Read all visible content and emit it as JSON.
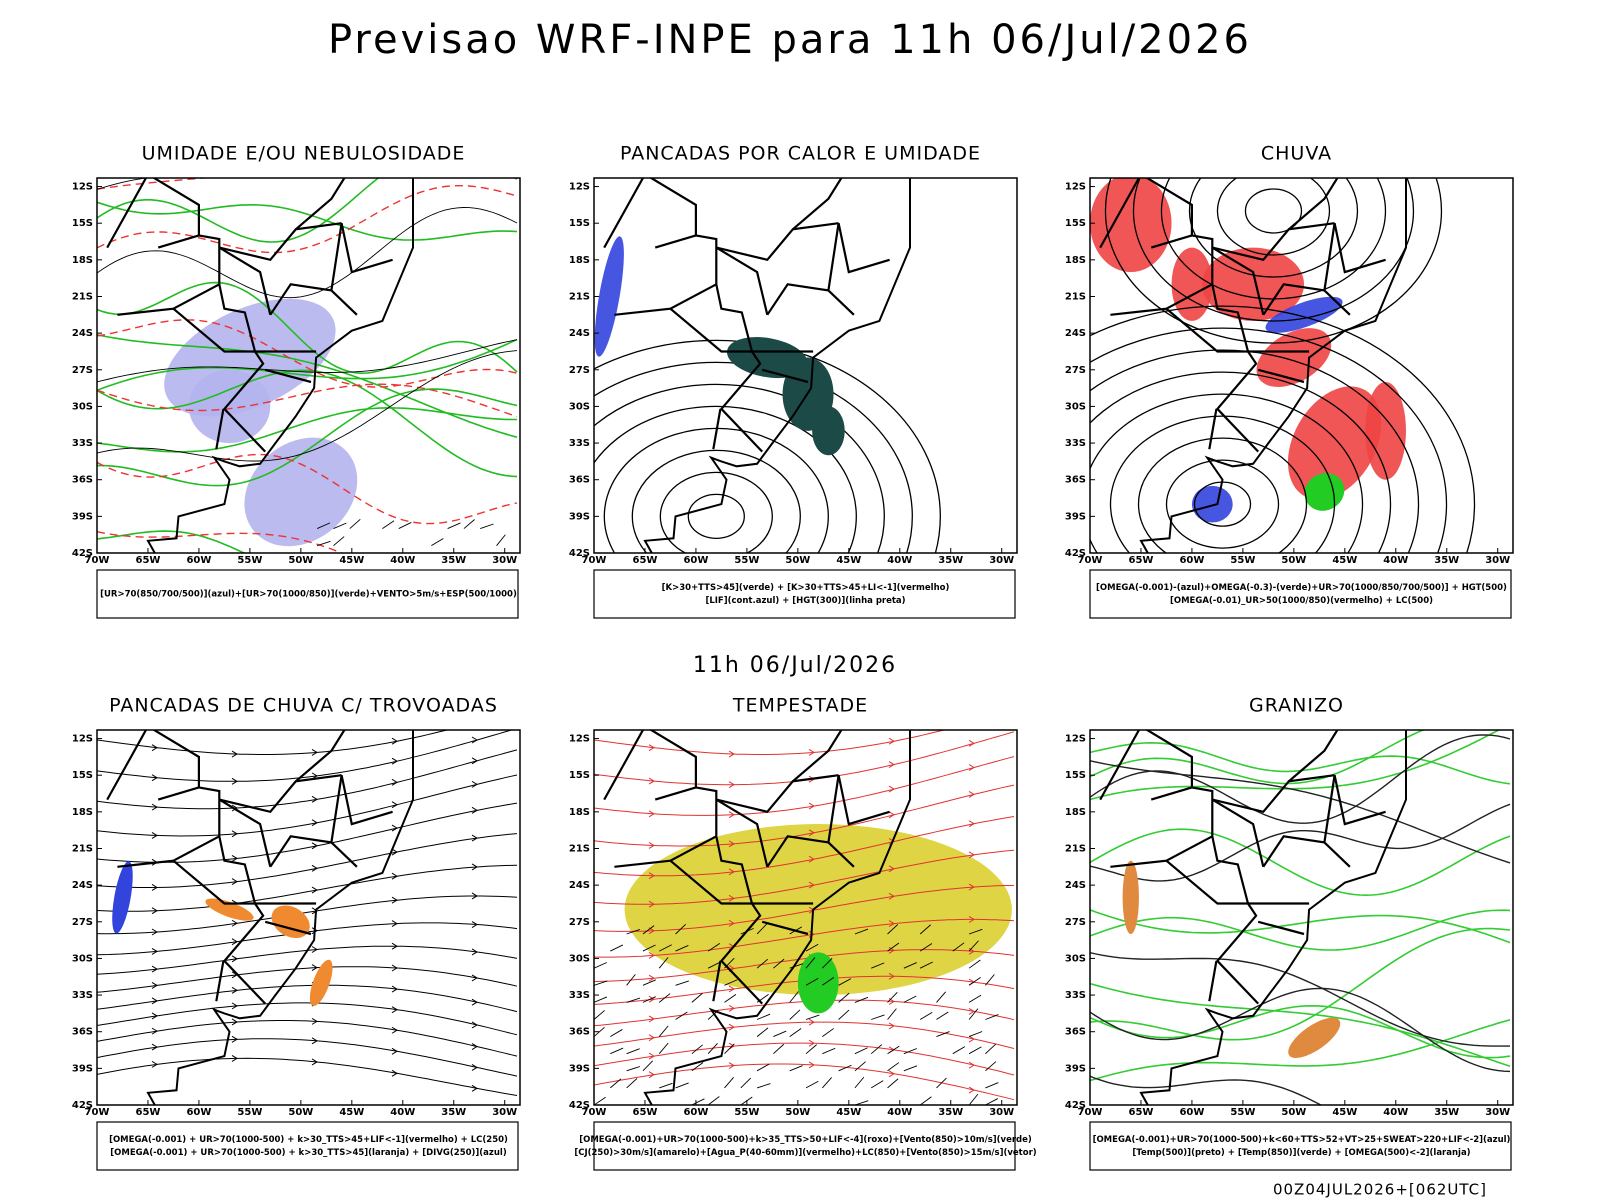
{
  "title": "Previsao WRF-INPE  para 11h 06/Jul/2026",
  "subtitle": "11h 06/Jul/2026",
  "footer": "00Z04JUL2026+[062UTC]",
  "lat_labels": [
    "12S",
    "15S",
    "18S",
    "21S",
    "24S",
    "27S",
    "30S",
    "33S",
    "36S",
    "39S",
    "42S"
  ],
  "lon_labels": [
    "70W",
    "65W",
    "60W",
    "55W",
    "50W",
    "45W",
    "40W",
    "35W",
    "30W"
  ],
  "panels": [
    {
      "title": "UMIDADE E/OU NEBULOSIDADE",
      "legend": [
        "[UR>70(850/700/500)](azul)+[UR>70(1000/850)](verde)+VENTO>5m/s+ESP(500/1000)"
      ]
    },
    {
      "title": "PANCADAS POR CALOR E UMIDADE",
      "legend": [
        "[K>30+TTS>45](verde) + [K>30+TTS>45+LI<-1](vermelho)",
        "[LIF](cont.azul) + [HGT(300)](linha preta)"
      ]
    },
    {
      "title": "CHUVA",
      "legend": [
        "[OMEGA(-0.001)-(azul)+OMEGA(-0.3)-(verde)+UR>70(1000/850/700/500)] + HGT(500)",
        "[OMEGA(-0.01)_UR>50(1000/850)(vermelho) + LC(500)"
      ]
    },
    {
      "title": "PANCADAS DE CHUVA C/ TROVOADAS",
      "legend": [
        "[OMEGA(-0.001) + UR>70(1000-500) + k>30_TTS>45+LIF<-1](vermelho) + LC(250)",
        "[OMEGA(-0.001) + UR>70(1000-500) + k>30_TTS>45](laranja) + [DIVG(250)](azul)"
      ]
    },
    {
      "title": "TEMPESTADE",
      "legend": [
        "[OMEGA(-0.001)+UR>70(1000-500)+k>35_TTS>50+LIF<-4](roxo)+[Vento(850)>10m/s](verde)",
        "[CJ(250)>30m/s](amarelo)+[Agua_P(40-60mm)](vermelho)+LC(850)+[Vento(850)>15m/s](vetor)"
      ]
    },
    {
      "title": "GRANIZO",
      "legend": [
        "[OMEGA(-0.001)+UR>70(1000-500)+k<60+TTS>52+VT>25+SWEAT>220+LIF<-2](azul)",
        "[Temp(500)](preto) + [Temp(850)](verde) + [OMEGA(500)<-2](laranja)"
      ]
    }
  ]
}
